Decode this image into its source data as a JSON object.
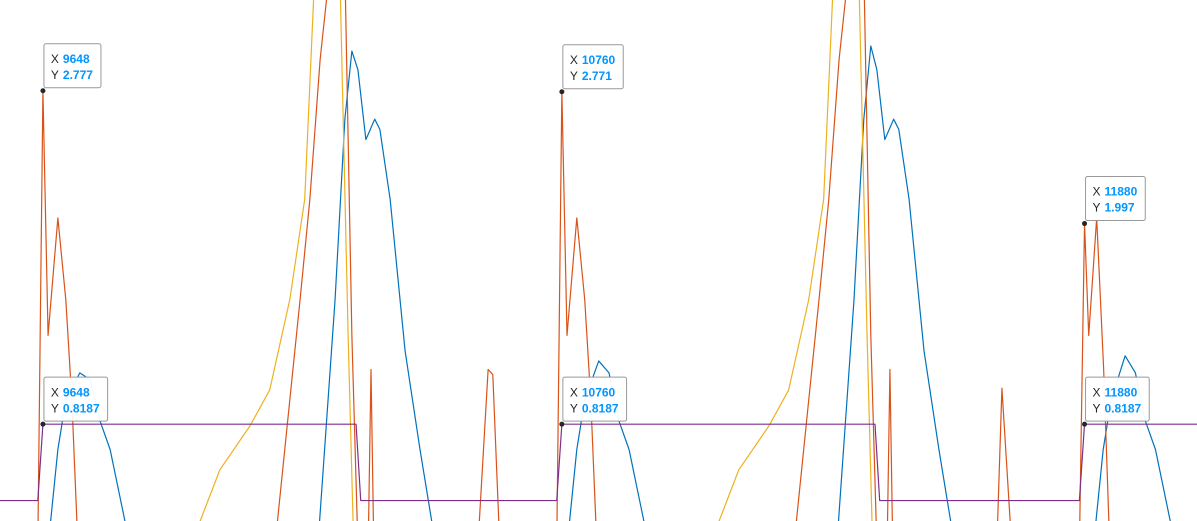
{
  "chart_data": {
    "type": "line",
    "xlim": [
      9556,
      12121
    ],
    "ylim": [
      0.25,
      3.31
    ],
    "series": [
      {
        "color": "#0072bd",
        "x": [
          9659,
          9680,
          9697,
          9727,
          9749,
          9770,
          9792,
          9835,
          10237,
          10274,
          10295,
          10310,
          10323,
          10340,
          10359,
          10370,
          10392,
          10424,
          10456,
          10490,
          10771,
          10792,
          10809,
          10839,
          10861,
          10882,
          10904,
          10947,
          11349,
          11386,
          11407,
          11422,
          11435,
          11452,
          11471,
          11482,
          11504,
          11536,
          11568,
          11602,
          11899,
          11920,
          11937,
          11967,
          11989,
          12010,
          12032,
          12075
        ],
        "values": [
          0.1,
          0.67,
          0.96,
          1.12,
          1.08,
          0.84,
          0.67,
          0.1,
          0.1,
          1.55,
          2.61,
          3.01,
          2.9,
          2.49,
          2.61,
          2.55,
          2.14,
          1.25,
          0.67,
          0.1,
          0.1,
          0.67,
          0.96,
          1.19,
          1.12,
          0.84,
          0.67,
          0.1,
          0.1,
          1.55,
          2.61,
          3.04,
          2.9,
          2.49,
          2.61,
          2.55,
          2.14,
          1.25,
          0.67,
          0.1,
          0.1,
          0.67,
          0.96,
          1.22,
          1.12,
          0.84,
          0.67,
          0.1
        ]
      },
      {
        "color": "#d95319",
        "x": [
          9637,
          9648,
          9659,
          9680,
          9697,
          9710,
          9723,
          10145,
          10177,
          10199,
          10220,
          10242,
          10263,
          10295,
          10310,
          10323,
          10345,
          10351,
          10357,
          10580,
          10602,
          10612,
          10627,
          10749,
          10760,
          10771,
          10792,
          10809,
          10822,
          10835,
          11257,
          11289,
          11311,
          11332,
          11354,
          11375,
          11407,
          11422,
          11435,
          11457,
          11463,
          11469,
          11692,
          11703,
          11724,
          11869,
          11880,
          11889,
          11906,
          11921,
          11934
        ],
        "values": [
          0.1,
          2.777,
          1.34,
          2.03,
          1.55,
          0.96,
          0.1,
          0.1,
          0.96,
          1.55,
          2.14,
          2.96,
          3.5,
          3.5,
          1.34,
          0.1,
          0.1,
          1.14,
          0.1,
          0.1,
          1.14,
          1.11,
          0.1,
          0.1,
          2.771,
          1.34,
          2.03,
          1.55,
          0.96,
          0.1,
          0.1,
          0.96,
          1.55,
          2.14,
          2.96,
          3.5,
          3.5,
          1.34,
          0.1,
          0.1,
          1.14,
          0.1,
          0.1,
          1.03,
          0.1,
          0.1,
          1.997,
          1.34,
          2.03,
          1.14,
          0.1
        ]
      },
      {
        "color": "#edb120",
        "x": [
          9963,
          9985,
          10027,
          10092,
          10134,
          10177,
          10209,
          10231,
          10284,
          10302,
          10314,
          11075,
          11097,
          11139,
          11204,
          11246,
          11289,
          11321,
          11343,
          11396,
          11414,
          11426
        ],
        "values": [
          0.1,
          0.25,
          0.55,
          0.81,
          1.02,
          1.55,
          2.14,
          3.5,
          3.5,
          1.34,
          0.1,
          0.1,
          0.25,
          0.55,
          0.81,
          1.02,
          1.55,
          2.14,
          3.5,
          3.5,
          1.34,
          0.1
        ]
      },
      {
        "color": "#7e2f8e",
        "x": [
          9556,
          9637,
          9648,
          10319,
          10329,
          10749,
          10760,
          11431,
          11441,
          11869,
          11880,
          12121
        ],
        "values": [
          0.37,
          0.37,
          0.8187,
          0.8187,
          0.37,
          0.37,
          0.8187,
          0.8187,
          0.37,
          0.37,
          0.8187,
          0.8187
        ]
      }
    ],
    "datatip_labels": {
      "x": "X",
      "y": "Y"
    },
    "datatips": [
      {
        "x": 9648,
        "y": 2.777
      },
      {
        "x": 10760,
        "y": 2.771
      },
      {
        "x": 11880,
        "y": 1.997
      },
      {
        "x": 9648,
        "y": 0.8187
      },
      {
        "x": 10760,
        "y": 0.8187
      },
      {
        "x": 11880,
        "y": 0.8187
      }
    ]
  }
}
